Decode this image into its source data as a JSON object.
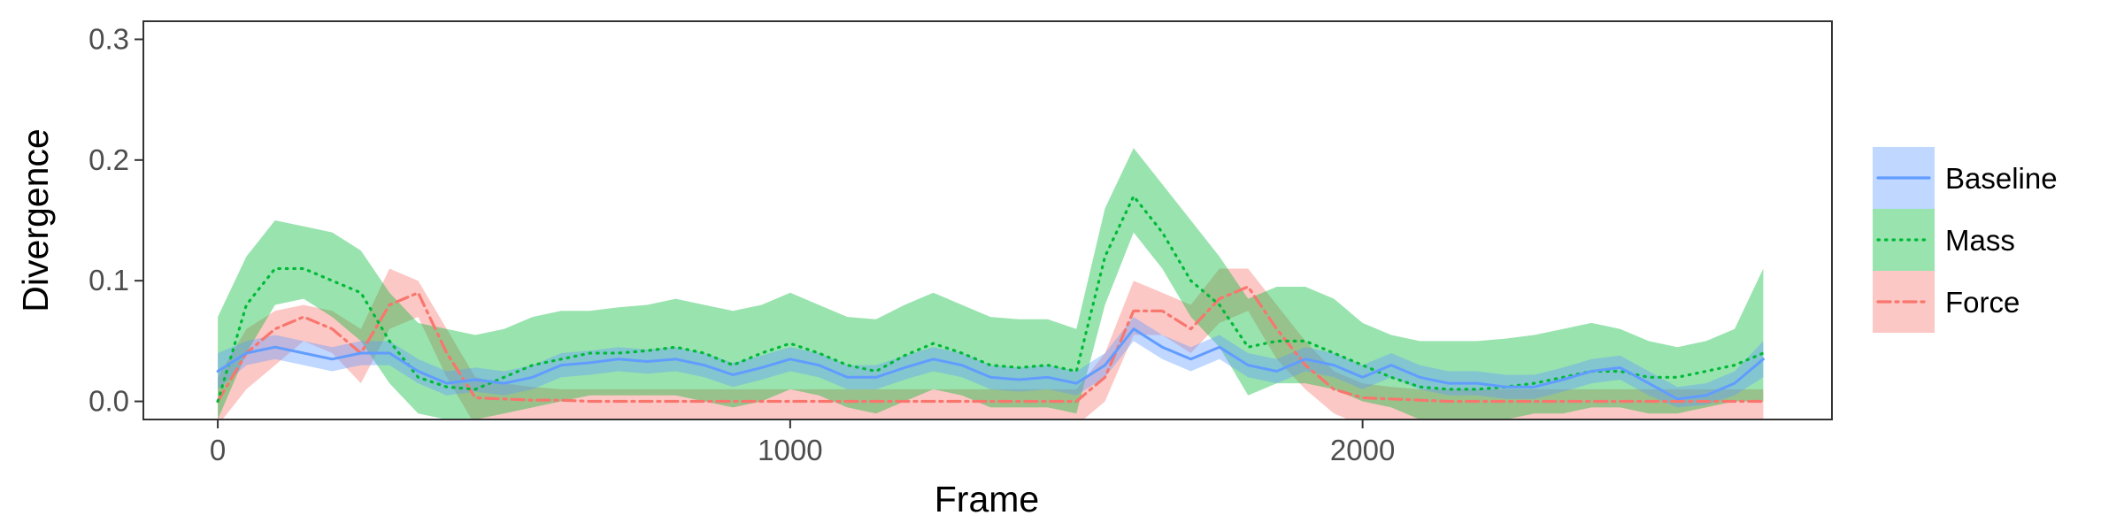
{
  "chart_data": {
    "type": "line",
    "xlabel": "Frame",
    "ylabel": "Divergence",
    "xlim": [
      -130,
      2820
    ],
    "ylim": [
      -0.015,
      0.315
    ],
    "x_ticks": [
      0,
      1000,
      2000
    ],
    "x_tick_labels": [
      "0",
      "1000",
      "2000"
    ],
    "y_ticks": [
      0.0,
      0.1,
      0.2,
      0.3
    ],
    "y_tick_labels": [
      "0.0",
      "0.1",
      "0.2",
      "0.3"
    ],
    "grid": false,
    "legend_position": "right",
    "x": [
      0,
      50,
      100,
      150,
      200,
      250,
      300,
      350,
      400,
      450,
      500,
      550,
      600,
      650,
      700,
      750,
      800,
      850,
      900,
      950,
      1000,
      1050,
      1100,
      1150,
      1200,
      1250,
      1300,
      1350,
      1400,
      1450,
      1500,
      1550,
      1600,
      1650,
      1700,
      1750,
      1800,
      1850,
      1900,
      1950,
      2000,
      2050,
      2100,
      2150,
      2200,
      2250,
      2300,
      2350,
      2400,
      2450,
      2500,
      2550,
      2600,
      2650,
      2700
    ],
    "series": [
      {
        "name": "Force",
        "line_style": "dashdot",
        "color": "#F8766D",
        "values": [
          0.0,
          0.04,
          0.06,
          0.07,
          0.06,
          0.04,
          0.08,
          0.09,
          0.04,
          0.003,
          0.002,
          0.001,
          0.001,
          0.0,
          0.0,
          0.0,
          0.0,
          0.0,
          0.0,
          0.0,
          0.0,
          0.0,
          0.0,
          0.0,
          0.0,
          0.0,
          0.0,
          0.0,
          0.0,
          0.0,
          0.0,
          0.02,
          0.075,
          0.075,
          0.06,
          0.085,
          0.095,
          0.06,
          0.03,
          0.01,
          0.003,
          0.002,
          0.001,
          0.0,
          0.0,
          0.0,
          0.0,
          0.0,
          0.0,
          0.0,
          0.0,
          0.0,
          0.0,
          0.0,
          0.0
        ],
        "lower": [
          -0.02,
          0.01,
          0.03,
          0.05,
          0.04,
          0.015,
          0.06,
          0.07,
          0.02,
          -0.02,
          -0.02,
          -0.02,
          -0.02,
          -0.02,
          -0.02,
          -0.02,
          -0.02,
          -0.02,
          -0.02,
          -0.02,
          -0.02,
          -0.02,
          -0.02,
          -0.02,
          -0.02,
          -0.02,
          -0.02,
          -0.02,
          -0.02,
          -0.02,
          -0.02,
          0.0,
          0.055,
          0.055,
          0.04,
          0.065,
          0.075,
          0.035,
          0.01,
          -0.01,
          -0.02,
          -0.02,
          -0.02,
          -0.02,
          -0.02,
          -0.02,
          -0.02,
          -0.02,
          -0.02,
          -0.02,
          -0.02,
          -0.02,
          -0.02,
          -0.02,
          -0.02
        ],
        "upper": [
          0.02,
          0.06,
          0.075,
          0.08,
          0.075,
          0.06,
          0.11,
          0.1,
          0.06,
          0.02,
          0.015,
          0.012,
          0.01,
          0.01,
          0.01,
          0.01,
          0.01,
          0.01,
          0.01,
          0.01,
          0.01,
          0.01,
          0.01,
          0.01,
          0.01,
          0.01,
          0.01,
          0.01,
          0.01,
          0.01,
          0.01,
          0.04,
          0.1,
          0.09,
          0.08,
          0.11,
          0.11,
          0.08,
          0.05,
          0.025,
          0.015,
          0.012,
          0.01,
          0.01,
          0.01,
          0.01,
          0.01,
          0.01,
          0.01,
          0.01,
          0.01,
          0.01,
          0.01,
          0.01,
          0.01
        ]
      },
      {
        "name": "Mass",
        "line_style": "dotted",
        "color": "#00BA38",
        "values": [
          0.0,
          0.08,
          0.11,
          0.11,
          0.1,
          0.09,
          0.05,
          0.02,
          0.012,
          0.01,
          0.02,
          0.03,
          0.035,
          0.04,
          0.04,
          0.042,
          0.045,
          0.04,
          0.03,
          0.04,
          0.048,
          0.04,
          0.03,
          0.025,
          0.038,
          0.048,
          0.04,
          0.03,
          0.028,
          0.03,
          0.025,
          0.12,
          0.17,
          0.14,
          0.1,
          0.08,
          0.045,
          0.05,
          0.05,
          0.04,
          0.03,
          0.02,
          0.012,
          0.01,
          0.01,
          0.012,
          0.015,
          0.02,
          0.025,
          0.025,
          0.02,
          0.02,
          0.025,
          0.03,
          0.04
        ],
        "lower": [
          -0.015,
          0.04,
          0.08,
          0.085,
          0.07,
          0.05,
          0.015,
          -0.01,
          -0.015,
          -0.015,
          -0.01,
          -0.005,
          0.0,
          0.005,
          0.005,
          0.005,
          0.005,
          0.0,
          -0.005,
          0.0,
          0.01,
          0.005,
          -0.005,
          -0.01,
          0.0,
          0.01,
          0.005,
          -0.005,
          -0.005,
          -0.005,
          -0.01,
          0.08,
          0.14,
          0.11,
          0.07,
          0.045,
          0.005,
          0.015,
          0.015,
          0.01,
          0.0,
          -0.005,
          -0.015,
          -0.015,
          -0.015,
          -0.015,
          -0.01,
          -0.01,
          -0.005,
          -0.005,
          -0.01,
          -0.01,
          -0.005,
          0.0,
          0.0
        ],
        "upper": [
          0.07,
          0.12,
          0.15,
          0.145,
          0.14,
          0.125,
          0.09,
          0.065,
          0.06,
          0.055,
          0.06,
          0.07,
          0.075,
          0.075,
          0.078,
          0.08,
          0.085,
          0.08,
          0.075,
          0.08,
          0.09,
          0.08,
          0.07,
          0.068,
          0.08,
          0.09,
          0.08,
          0.07,
          0.068,
          0.068,
          0.06,
          0.16,
          0.21,
          0.18,
          0.15,
          0.12,
          0.085,
          0.095,
          0.095,
          0.085,
          0.065,
          0.055,
          0.05,
          0.05,
          0.05,
          0.052,
          0.055,
          0.06,
          0.065,
          0.06,
          0.05,
          0.045,
          0.05,
          0.06,
          0.11
        ]
      },
      {
        "name": "Baseline",
        "line_style": "solid",
        "color": "#619CFF",
        "values": [
          0.025,
          0.04,
          0.045,
          0.04,
          0.035,
          0.04,
          0.04,
          0.025,
          0.015,
          0.018,
          0.015,
          0.02,
          0.03,
          0.032,
          0.035,
          0.033,
          0.035,
          0.03,
          0.022,
          0.028,
          0.035,
          0.03,
          0.02,
          0.02,
          0.028,
          0.035,
          0.03,
          0.02,
          0.018,
          0.02,
          0.015,
          0.03,
          0.06,
          0.045,
          0.035,
          0.045,
          0.03,
          0.025,
          0.035,
          0.03,
          0.02,
          0.03,
          0.02,
          0.015,
          0.015,
          0.012,
          0.012,
          0.018,
          0.025,
          0.028,
          0.015,
          0.002,
          0.005,
          0.015,
          0.035
        ],
        "lower": [
          0.01,
          0.03,
          0.035,
          0.03,
          0.025,
          0.03,
          0.03,
          0.015,
          0.005,
          0.008,
          0.005,
          0.01,
          0.02,
          0.022,
          0.025,
          0.023,
          0.025,
          0.02,
          0.012,
          0.018,
          0.025,
          0.02,
          0.01,
          0.01,
          0.018,
          0.025,
          0.02,
          0.01,
          0.008,
          0.01,
          0.005,
          0.02,
          0.05,
          0.035,
          0.025,
          0.035,
          0.02,
          0.015,
          0.025,
          0.02,
          0.01,
          0.02,
          0.01,
          0.005,
          0.005,
          0.002,
          0.002,
          0.008,
          0.015,
          0.018,
          0.005,
          -0.005,
          -0.003,
          0.005,
          0.02
        ],
        "upper": [
          0.04,
          0.05,
          0.055,
          0.05,
          0.045,
          0.05,
          0.05,
          0.035,
          0.025,
          0.028,
          0.025,
          0.03,
          0.04,
          0.042,
          0.045,
          0.043,
          0.045,
          0.04,
          0.032,
          0.038,
          0.045,
          0.04,
          0.03,
          0.03,
          0.038,
          0.045,
          0.04,
          0.03,
          0.028,
          0.03,
          0.025,
          0.04,
          0.07,
          0.055,
          0.045,
          0.055,
          0.04,
          0.035,
          0.045,
          0.04,
          0.03,
          0.04,
          0.03,
          0.025,
          0.025,
          0.022,
          0.022,
          0.028,
          0.035,
          0.038,
          0.025,
          0.012,
          0.015,
          0.025,
          0.05
        ]
      }
    ],
    "legend": [
      {
        "name": "Baseline",
        "color": "#619CFF",
        "line_style": "solid"
      },
      {
        "name": "Mass",
        "color": "#00BA38",
        "line_style": "dotted"
      },
      {
        "name": "Force",
        "color": "#F8766D",
        "line_style": "dashdot"
      }
    ]
  }
}
